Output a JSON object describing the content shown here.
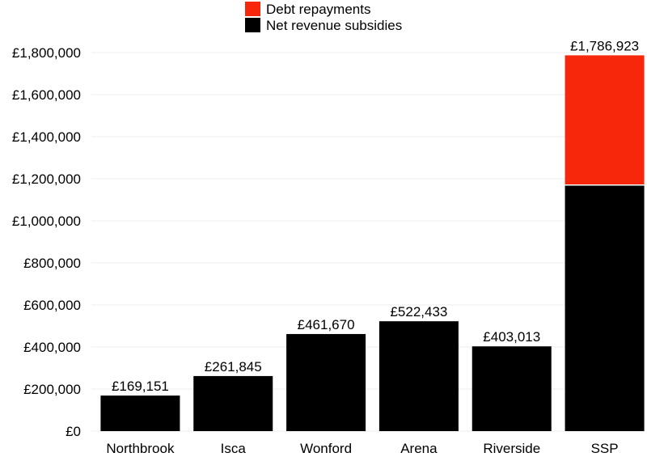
{
  "chart_data": {
    "type": "bar",
    "stacked": true,
    "categories": [
      "Northbrook",
      "Isca",
      "Wonford",
      "Arena",
      "Riverside",
      "SSP"
    ],
    "series": [
      {
        "name": "Net revenue subsidies",
        "color": "#000000",
        "values": [
          169151,
          261845,
          461670,
          522433,
          403013,
          1170000
        ]
      },
      {
        "name": "Debt repayments",
        "color": "#f7270c",
        "values": [
          0,
          0,
          0,
          0,
          0,
          616923
        ]
      }
    ],
    "totals": [
      169151,
      261845,
      461670,
      522433,
      403013,
      1786923
    ],
    "total_labels": [
      "£169,151",
      "£261,845",
      "£461,670",
      "£522,433",
      "£403,013",
      "£1,786,923"
    ],
    "ylim": [
      0,
      1850000
    ],
    "yticks": [
      0,
      200000,
      400000,
      600000,
      800000,
      1000000,
      1200000,
      1400000,
      1600000,
      1800000
    ],
    "ytick_labels": [
      "£0",
      "£200,000",
      "£400,000",
      "£600,000",
      "£800,000",
      "£1,000,000",
      "£1,200,000",
      "£1,400,000",
      "£1,600,000",
      "£1,800,000"
    ],
    "legend": {
      "placement": "top-center",
      "entries": [
        {
          "label": "Debt repayments",
          "color": "#f7270c"
        },
        {
          "label": "Net revenue subsidies",
          "color": "#000000"
        }
      ]
    },
    "grid": true
  }
}
